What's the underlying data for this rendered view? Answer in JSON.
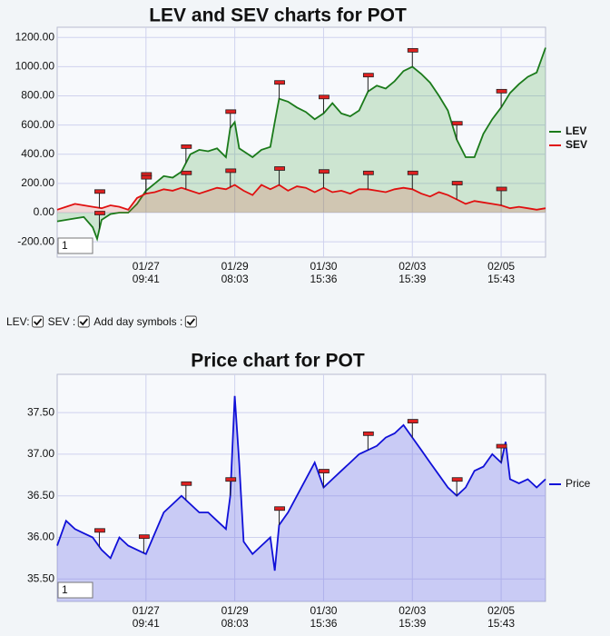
{
  "chart_data": [
    {
      "type": "line",
      "title": "LEV and SEV charts for POT",
      "x": [
        0,
        2,
        4,
        6,
        8,
        9,
        10,
        12,
        14,
        16,
        18,
        20,
        22,
        24,
        26,
        28,
        30,
        32,
        34,
        36,
        38,
        39,
        40,
        41,
        42,
        44,
        46,
        48,
        49,
        50,
        52,
        54,
        56,
        58,
        60,
        62,
        64,
        66,
        68,
        70,
        72,
        74,
        76,
        78,
        80,
        82,
        84,
        86,
        88,
        90,
        92,
        94,
        96,
        98,
        100,
        102,
        104,
        106,
        108,
        110
      ],
      "series": [
        {
          "name": "LEV",
          "color": "#1a7a1a",
          "fill": "rgba(60,160,60,0.22)",
          "values": [
            -60,
            -50,
            -40,
            -30,
            -100,
            -180,
            -50,
            -10,
            0,
            0,
            60,
            150,
            200,
            250,
            240,
            280,
            400,
            430,
            420,
            440,
            380,
            580,
            620,
            440,
            420,
            380,
            430,
            450,
            620,
            780,
            760,
            720,
            690,
            640,
            680,
            750,
            680,
            660,
            700,
            830,
            870,
            850,
            900,
            970,
            1000,
            950,
            890,
            800,
            700,
            500,
            380,
            380,
            540,
            640,
            720,
            820,
            880,
            930,
            960,
            1130
          ]
        },
        {
          "name": "SEV",
          "color": "#e01010",
          "fill": "rgba(220,60,40,0.18)",
          "values": [
            20,
            40,
            60,
            50,
            40,
            35,
            30,
            50,
            40,
            20,
            100,
            130,
            140,
            160,
            150,
            170,
            150,
            130,
            150,
            170,
            160,
            175,
            190,
            170,
            150,
            120,
            190,
            160,
            175,
            190,
            150,
            180,
            170,
            140,
            170,
            140,
            150,
            130,
            160,
            160,
            150,
            140,
            160,
            170,
            160,
            130,
            110,
            140,
            120,
            90,
            60,
            80,
            70,
            60,
            50,
            30,
            40,
            30,
            20,
            30
          ]
        }
      ],
      "xlim": [
        0,
        110
      ],
      "xticks": [
        {
          "value": 20,
          "label": "01/27",
          "sublabel": "09:41"
        },
        {
          "value": 40,
          "label": "01/29",
          "sublabel": "08:03"
        },
        {
          "value": 60,
          "label": "01/30",
          "sublabel": "15:36"
        },
        {
          "value": 80,
          "label": "02/03",
          "sublabel": "15:39"
        },
        {
          "value": 100,
          "label": "02/05",
          "sublabel": "15:43"
        }
      ],
      "ylim": [
        -305,
        1270
      ],
      "yticks": [
        {
          "value": -200,
          "label": "-200.00"
        },
        {
          "value": 0,
          "label": "0.00"
        },
        {
          "value": 200,
          "label": "200.00"
        },
        {
          "value": 400,
          "label": "400.00"
        },
        {
          "value": 600,
          "label": "600.00"
        },
        {
          "value": 800,
          "label": "800.00"
        },
        {
          "value": 1000,
          "label": "1000.00"
        },
        {
          "value": 1200,
          "label": "1200.00"
        }
      ],
      "day_symbols": [
        9.5,
        20,
        29,
        39,
        50,
        60,
        70,
        80,
        90,
        100
      ],
      "fill_base": "zero",
      "grid": true
    },
    {
      "type": "line",
      "title": "Price chart for POT",
      "x": [
        0,
        2,
        4,
        6,
        8,
        10,
        12,
        14,
        16,
        18,
        20,
        22,
        24,
        26,
        28,
        30,
        32,
        34,
        36,
        38,
        39,
        40,
        41,
        42,
        44,
        46,
        48,
        49,
        50,
        52,
        54,
        56,
        58,
        60,
        62,
        64,
        66,
        68,
        70,
        72,
        74,
        76,
        78,
        80,
        82,
        84,
        86,
        88,
        90,
        92,
        94,
        96,
        98,
        100,
        101,
        102,
        104,
        106,
        108,
        110
      ],
      "series": [
        {
          "name": "Price",
          "color": "#1010d8",
          "fill": "rgba(110,110,230,0.33)",
          "values": [
            35.9,
            36.2,
            36.1,
            36.05,
            36.0,
            35.85,
            35.75,
            36.0,
            35.9,
            35.85,
            35.8,
            36.05,
            36.3,
            36.4,
            36.5,
            36.4,
            36.3,
            36.3,
            36.2,
            36.1,
            36.5,
            37.7,
            36.9,
            35.95,
            35.8,
            35.9,
            36.0,
            35.6,
            36.15,
            36.3,
            36.5,
            36.7,
            36.9,
            36.6,
            36.7,
            36.8,
            36.9,
            37.0,
            37.05,
            37.1,
            37.2,
            37.25,
            37.35,
            37.2,
            37.05,
            36.9,
            36.75,
            36.6,
            36.5,
            36.6,
            36.8,
            36.85,
            37.0,
            36.9,
            37.15,
            36.7,
            36.65,
            36.7,
            36.6,
            36.7
          ]
        }
      ],
      "xlim": [
        0,
        110
      ],
      "xticks": [
        {
          "value": 20,
          "label": "01/27",
          "sublabel": "09:41"
        },
        {
          "value": 40,
          "label": "01/29",
          "sublabel": "08:03"
        },
        {
          "value": 60,
          "label": "01/30",
          "sublabel": "15:36"
        },
        {
          "value": 80,
          "label": "02/03",
          "sublabel": "15:39"
        },
        {
          "value": 100,
          "label": "02/05",
          "sublabel": "15:43"
        }
      ],
      "ylim": [
        35.23,
        37.96
      ],
      "yticks": [
        {
          "value": 35.5,
          "label": "35.50"
        },
        {
          "value": 36,
          "label": "36.00"
        },
        {
          "value": 36.5,
          "label": "36.50"
        },
        {
          "value": 37,
          "label": "37.00"
        },
        {
          "value": 37.5,
          "label": "37.50"
        }
      ],
      "day_symbols": [
        9.5,
        19.5,
        29,
        39,
        50,
        60,
        70,
        80,
        90,
        100
      ],
      "fill_base": "bottom",
      "grid": true
    }
  ],
  "controls": {
    "labels": [
      "LEV:",
      "SEV :",
      "Add day symbols :"
    ],
    "zoom": [
      "1",
      "1"
    ]
  }
}
